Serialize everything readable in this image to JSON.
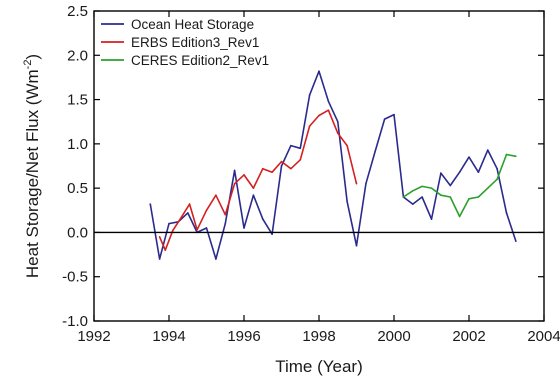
{
  "chart_data": {
    "type": "line",
    "title": "",
    "xlabel": "Time (Year)",
    "ylabel_prefix": "Heat Storage/Net Flux (Wm",
    "ylabel_sup": "-2",
    "ylabel_suffix": ")",
    "xlim": [
      1992,
      2004
    ],
    "ylim": [
      -1.0,
      2.5
    ],
    "xticks": [
      1992,
      1994,
      1996,
      1998,
      2000,
      2002,
      2004
    ],
    "yticks": [
      -1.0,
      -0.5,
      0.0,
      0.5,
      1.0,
      1.5,
      2.0,
      2.5
    ],
    "xtick_labels": [
      "1992",
      "1994",
      "1996",
      "1998",
      "2000",
      "2002",
      "2004"
    ],
    "ytick_labels": [
      "-1.0",
      "-0.5",
      "0.0",
      "0.5",
      "1.0",
      "1.5",
      "2.0",
      "2.5"
    ],
    "zero_line": true,
    "grid": false,
    "legend_position": "top-left",
    "series": [
      {
        "name": "Ocean Heat Storage",
        "color": "#2b2b8f",
        "x": [
          1993.5,
          1993.75,
          1994.0,
          1994.25,
          1994.5,
          1994.75,
          1995.0,
          1995.25,
          1995.5,
          1995.75,
          1996.0,
          1996.25,
          1996.5,
          1996.75,
          1997.0,
          1997.25,
          1997.5,
          1997.75,
          1998.0,
          1998.25,
          1998.5,
          1998.75,
          1999.0,
          1999.25,
          1999.5,
          1999.75,
          2000.0,
          2000.25,
          2000.5,
          2000.75,
          2001.0,
          2001.25,
          2001.5,
          2001.75,
          2002.0,
          2002.25,
          2002.5,
          2002.75,
          2003.0,
          2003.25
        ],
        "y": [
          0.32,
          -0.3,
          0.1,
          0.12,
          0.22,
          0.0,
          0.05,
          -0.3,
          0.1,
          0.7,
          0.05,
          0.42,
          0.15,
          -0.02,
          0.75,
          0.98,
          0.95,
          1.55,
          1.82,
          1.48,
          1.25,
          0.35,
          -0.15,
          0.55,
          0.92,
          1.28,
          1.33,
          0.4,
          0.32,
          0.4,
          0.15,
          0.67,
          0.53,
          0.68,
          0.85,
          0.68,
          0.93,
          0.72,
          0.22,
          -0.1
        ]
      },
      {
        "name": "ERBS Edition3_Rev1",
        "color": "#d42020",
        "x": [
          1993.75,
          1993.9,
          1994.1,
          1994.3,
          1994.55,
          1994.75,
          1995.0,
          1995.25,
          1995.5,
          1995.75,
          1996.0,
          1996.25,
          1996.5,
          1996.75,
          1997.0,
          1997.25,
          1997.5,
          1997.75,
          1998.0,
          1998.25,
          1998.5,
          1998.75,
          1999.0
        ],
        "y": [
          -0.05,
          -0.2,
          0.02,
          0.15,
          0.32,
          0.03,
          0.25,
          0.42,
          0.2,
          0.55,
          0.65,
          0.5,
          0.72,
          0.68,
          0.8,
          0.72,
          0.82,
          1.2,
          1.32,
          1.38,
          1.12,
          0.98,
          0.55
        ]
      },
      {
        "name": "CERES Edition2_Rev1",
        "color": "#2ca02c",
        "x": [
          2000.25,
          2000.5,
          2000.75,
          2001.0,
          2001.25,
          2001.5,
          2001.75,
          2002.0,
          2002.25,
          2002.5,
          2002.75,
          2003.0,
          2003.25
        ],
        "y": [
          0.4,
          0.47,
          0.52,
          0.5,
          0.42,
          0.4,
          0.18,
          0.38,
          0.4,
          0.5,
          0.6,
          0.88,
          0.86
        ]
      }
    ]
  }
}
